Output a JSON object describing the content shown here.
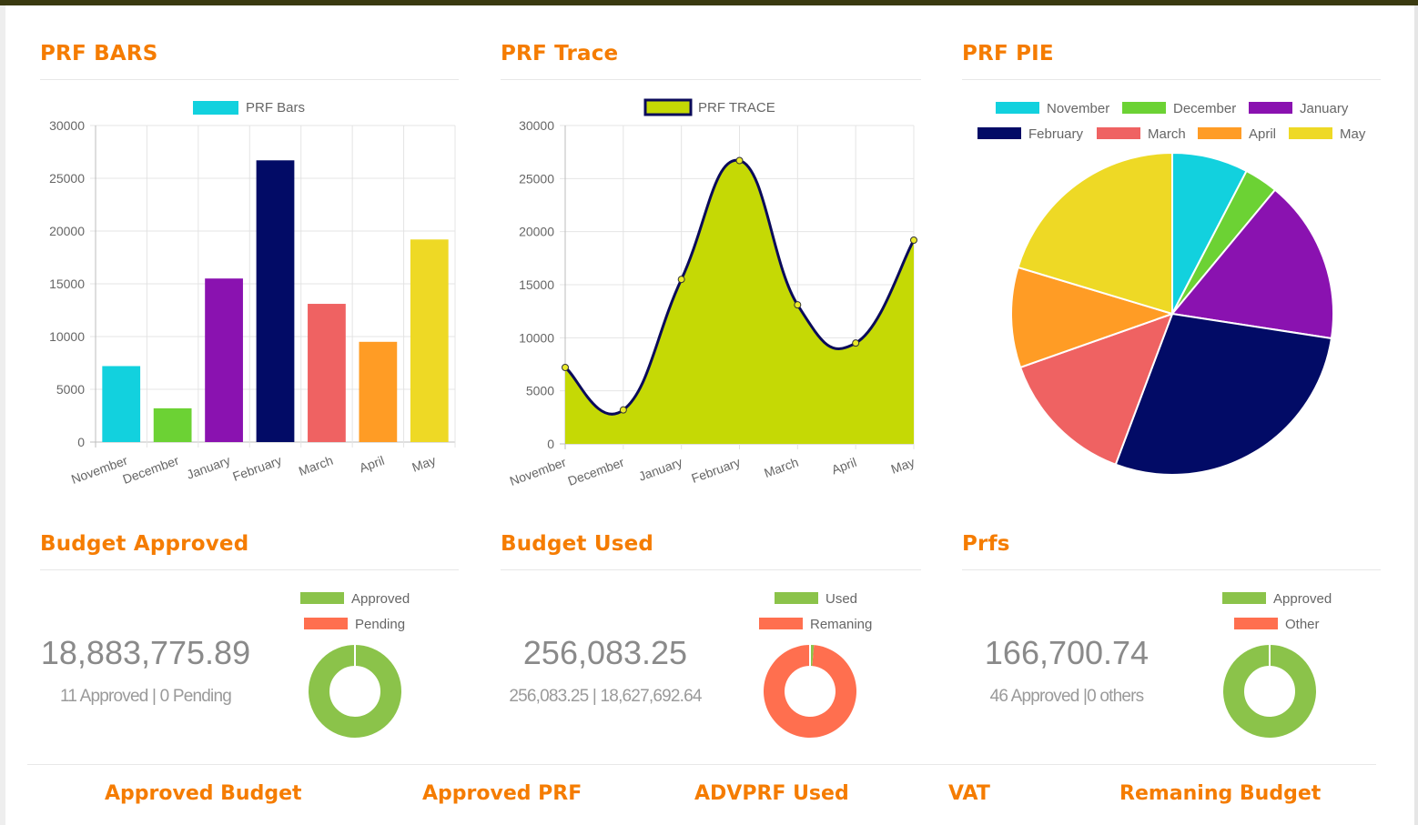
{
  "panels": {
    "bars_title": "PRF BARS",
    "trace_title": "PRF Trace",
    "pie_title": "PRF PIE",
    "budget_approved_title": "Budget Approved",
    "budget_used_title": "Budget Used",
    "prfs_title": "Prfs"
  },
  "months": [
    "November",
    "December",
    "January",
    "February",
    "March",
    "April",
    "May"
  ],
  "colors": {
    "accent": "#f57c00",
    "months": [
      "#12d1de",
      "#6cd234",
      "#8a12b0",
      "#020b66",
      "#ef6262",
      "#ff9c25",
      "#eed925"
    ],
    "trace_fill": "#c5d905",
    "trace_line": "#0a0a5a",
    "donut_green": "#8bc34a",
    "donut_red": "#ff6f4f"
  },
  "chart_data": [
    {
      "type": "bar",
      "legend": [
        "PRF Bars"
      ],
      "categories": [
        "November",
        "December",
        "January",
        "February",
        "March",
        "April",
        "May"
      ],
      "values": [
        7200,
        3200,
        15500,
        26700,
        13100,
        9500,
        19200
      ],
      "ylim": [
        0,
        30000
      ],
      "yticks": [
        0,
        5000,
        10000,
        15000,
        20000,
        25000,
        30000
      ],
      "grid": true,
      "legend_position": "top"
    },
    {
      "type": "area",
      "legend": [
        "PRF TRACE"
      ],
      "categories": [
        "November",
        "December",
        "January",
        "February",
        "March",
        "April",
        "May"
      ],
      "values": [
        7200,
        3200,
        15500,
        26700,
        13100,
        9500,
        19200
      ],
      "ylim": [
        0,
        30000
      ],
      "yticks": [
        0,
        5000,
        10000,
        15000,
        20000,
        25000,
        30000
      ],
      "grid": true,
      "legend_position": "top"
    },
    {
      "type": "pie",
      "labels": [
        "November",
        "December",
        "January",
        "February",
        "March",
        "April",
        "May"
      ],
      "values": [
        7200,
        3200,
        15500,
        26700,
        13100,
        9500,
        19200
      ],
      "legend_position": "top"
    },
    {
      "type": "pie",
      "donut": true,
      "labels": [
        "Approved",
        "Pending"
      ],
      "values": [
        11,
        0
      ],
      "colors": [
        "#8bc34a",
        "#ff6f4f"
      ],
      "big_number": "18,883,775.89",
      "sub_text": "11 Approved | 0 Pending"
    },
    {
      "type": "pie",
      "donut": true,
      "labels": [
        "Used",
        "Remaning"
      ],
      "values": [
        256083.25,
        18627692.64
      ],
      "colors": [
        "#8bc34a",
        "#ff6f4f"
      ],
      "big_number": "256,083.25",
      "sub_text": "256,083.25 | 18,627,692.64"
    },
    {
      "type": "pie",
      "donut": true,
      "labels": [
        "Approved",
        "Other"
      ],
      "values": [
        46,
        0
      ],
      "colors": [
        "#8bc34a",
        "#ff6f4f"
      ],
      "big_number": "166,700.74",
      "sub_text": "46 Approved |0 others"
    }
  ],
  "footer": {
    "items": [
      "Approved Budget",
      "Approved PRF",
      "ADVPRF Used",
      "VAT",
      "Remaning Budget"
    ]
  }
}
